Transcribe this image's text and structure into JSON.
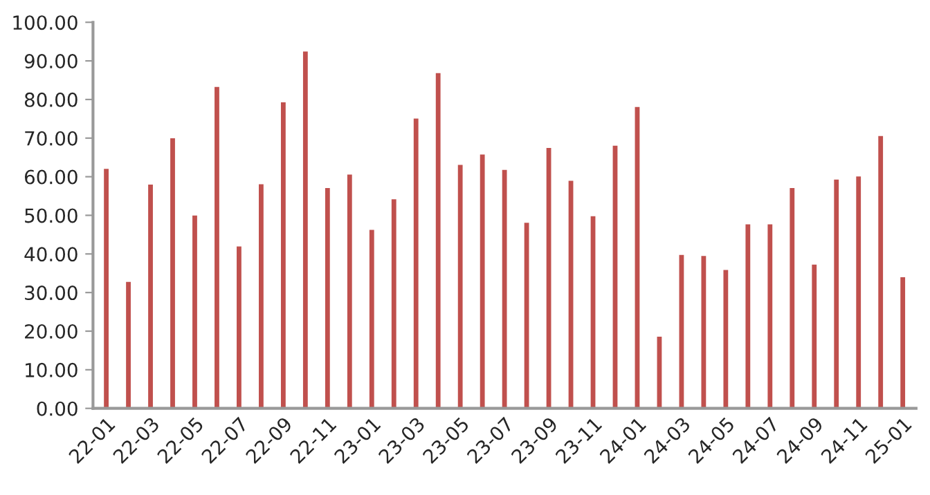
{
  "chart_data": {
    "type": "bar",
    "categories": [
      "22-01",
      null,
      "22-03",
      null,
      "22-05",
      null,
      "22-07",
      null,
      "22-09",
      null,
      "22-11",
      null,
      "23-01",
      null,
      "23-03",
      null,
      "23-05",
      null,
      "23-07",
      null,
      "23-09",
      null,
      "23-11",
      null,
      "24-01",
      null,
      "24-03",
      null,
      "24-05",
      null,
      "24-07",
      null,
      "24-09",
      null,
      "24-11",
      null,
      "25-01"
    ],
    "values": [
      62.3,
      33.0,
      58.2,
      70.2,
      50.2,
      83.5,
      42.2,
      58.3,
      79.5,
      92.7,
      57.3,
      60.8,
      46.5,
      54.4,
      75.3,
      87.1,
      63.3,
      66.0,
      62.0,
      48.3,
      67.7,
      59.2,
      50.0,
      68.3,
      78.3,
      18.8,
      40.0,
      39.7,
      36.1,
      47.9,
      47.9,
      57.3,
      37.5,
      59.5,
      60.3,
      70.8,
      34.2
    ],
    "color": "#c0504d",
    "ylim": [
      0,
      100
    ],
    "yticks": [
      {
        "value": 0,
        "label": "0.00"
      },
      {
        "value": 10,
        "label": "10.00"
      },
      {
        "value": 20,
        "label": "20.00"
      },
      {
        "value": 30,
        "label": "30.00"
      },
      {
        "value": 40,
        "label": "40.00"
      },
      {
        "value": 50,
        "label": "50.00"
      },
      {
        "value": 60,
        "label": "60.00"
      },
      {
        "value": 70,
        "label": "70.00"
      },
      {
        "value": 80,
        "label": "80.00"
      },
      {
        "value": 90,
        "label": "90.00"
      },
      {
        "value": 100,
        "label": "100.00"
      }
    ],
    "grid": false
  }
}
